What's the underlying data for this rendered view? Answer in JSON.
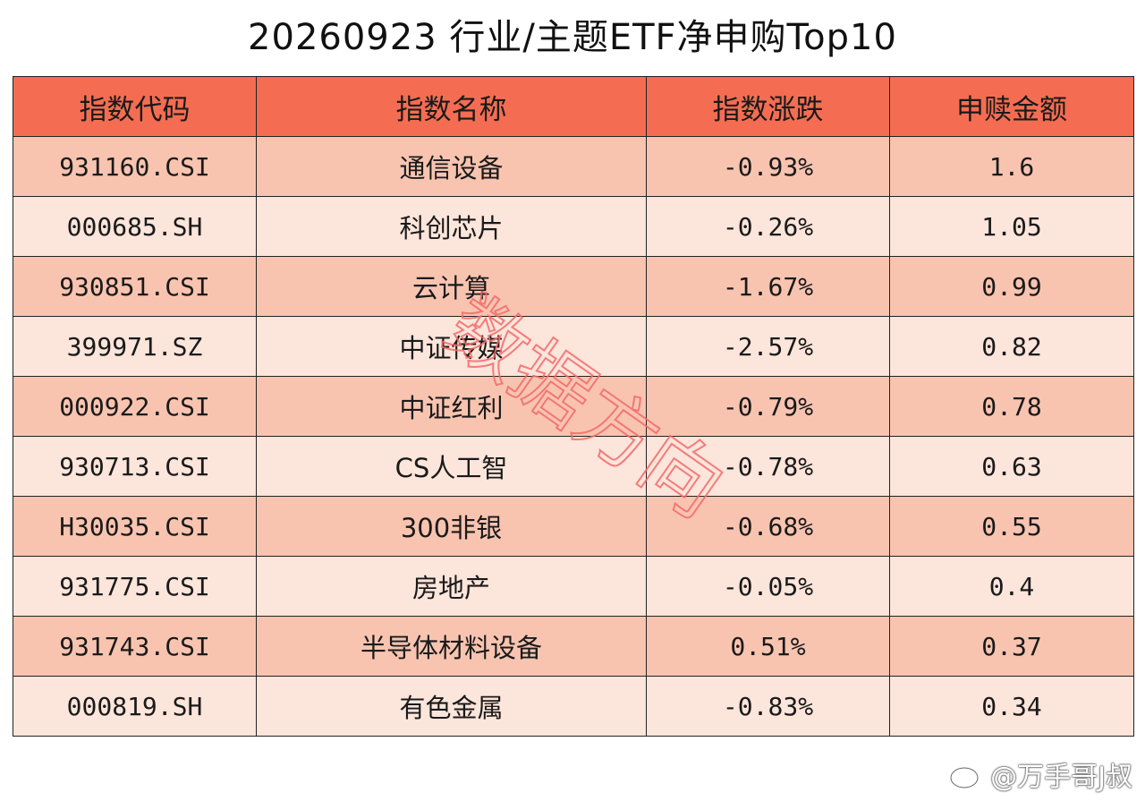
{
  "title": "20260923 行业/主题ETF净申购Top10",
  "colors": {
    "header_bg": "#F46D52",
    "row_dark": "#F8C4B0",
    "row_light": "#FCE5DB",
    "border": "#222222",
    "watermark": "#F26A6A"
  },
  "watermark_text": "数据方向",
  "weibo_handle": "@万手哥J叔",
  "chart_data": {
    "type": "table",
    "title": "20260923 行业/主题ETF净申购Top10",
    "columns": [
      "指数代码",
      "指数名称",
      "指数涨跌",
      "申赎金额"
    ],
    "rows": [
      [
        "931160.CSI",
        "通信设备",
        "-0.93%",
        "1.6"
      ],
      [
        "000685.SH",
        "科创芯片",
        "-0.26%",
        "1.05"
      ],
      [
        "930851.CSI",
        "云计算",
        "-1.67%",
        "0.99"
      ],
      [
        "399971.SZ",
        "中证传媒",
        "-2.57%",
        "0.82"
      ],
      [
        "000922.CSI",
        "中证红利",
        "-0.79%",
        "0.78"
      ],
      [
        "930713.CSI",
        "CS人工智",
        "-0.78%",
        "0.63"
      ],
      [
        "H30035.CSI",
        "300非银",
        "-0.68%",
        "0.55"
      ],
      [
        "931775.CSI",
        "房地产",
        "-0.05%",
        "0.4"
      ],
      [
        "931743.CSI",
        "半导体材料设备",
        "0.51%",
        "0.37"
      ],
      [
        "000819.SH",
        "有色金属",
        "-0.83%",
        "0.34"
      ]
    ]
  }
}
